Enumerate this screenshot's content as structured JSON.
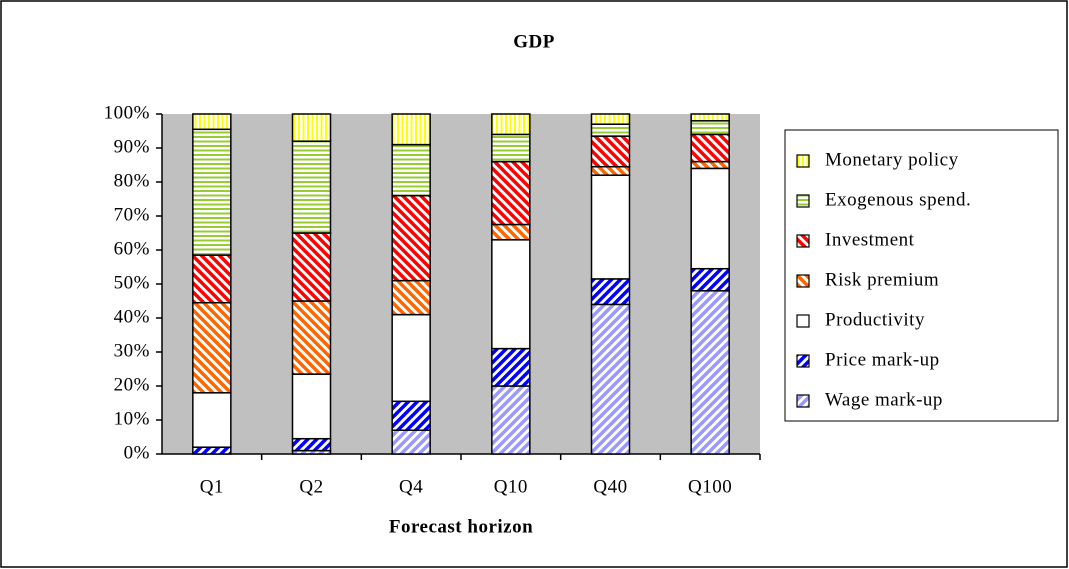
{
  "chart_data": {
    "type": "stacked_bar",
    "title": "GDP",
    "xlabel": "Forecast horizon",
    "categories": [
      "Q1",
      "Q2",
      "Q4",
      "Q10",
      "Q40",
      "Q100"
    ],
    "series": [
      {
        "name": "Wage mark-up",
        "color": "#9999ff",
        "values": [
          0,
          1,
          7,
          20,
          44,
          48
        ]
      },
      {
        "name": "Price mark-up",
        "color": "#0000ff",
        "values": [
          2,
          3.5,
          8.5,
          11,
          7.5,
          6.5
        ]
      },
      {
        "name": "Productivity",
        "color": "#ffffff",
        "values": [
          16,
          19,
          25.5,
          32,
          30.5,
          29.5
        ]
      },
      {
        "name": "Risk premium",
        "color": "#ff6600",
        "values": [
          26.5,
          21.5,
          10,
          4.5,
          2.5,
          2
        ]
      },
      {
        "name": "Investment",
        "color": "#ff0000",
        "values": [
          14,
          20,
          25,
          18.5,
          9,
          8
        ]
      },
      {
        "name": "Exogenous spend.",
        "color": "#99cc33",
        "values": [
          37,
          27,
          15,
          8,
          3.5,
          4
        ]
      },
      {
        "name": "Monetary policy",
        "color": "#ffff00",
        "values": [
          4.5,
          8,
          9,
          6,
          3,
          2
        ]
      }
    ],
    "ylim": [
      0,
      100
    ],
    "yticks": [
      {
        "value": 0,
        "label": "0%"
      },
      {
        "value": 10,
        "label": "10%"
      },
      {
        "value": 20,
        "label": "20%"
      },
      {
        "value": 30,
        "label": "30%"
      },
      {
        "value": 40,
        "label": "40%"
      },
      {
        "value": 50,
        "label": "50%"
      },
      {
        "value": 60,
        "label": "60%"
      },
      {
        "value": 70,
        "label": "70%"
      },
      {
        "value": 80,
        "label": "80%"
      },
      {
        "value": 90,
        "label": "90%"
      },
      {
        "value": 100,
        "label": "100%"
      }
    ],
    "plot_background": "#c0c0c0",
    "legend": "right"
  }
}
